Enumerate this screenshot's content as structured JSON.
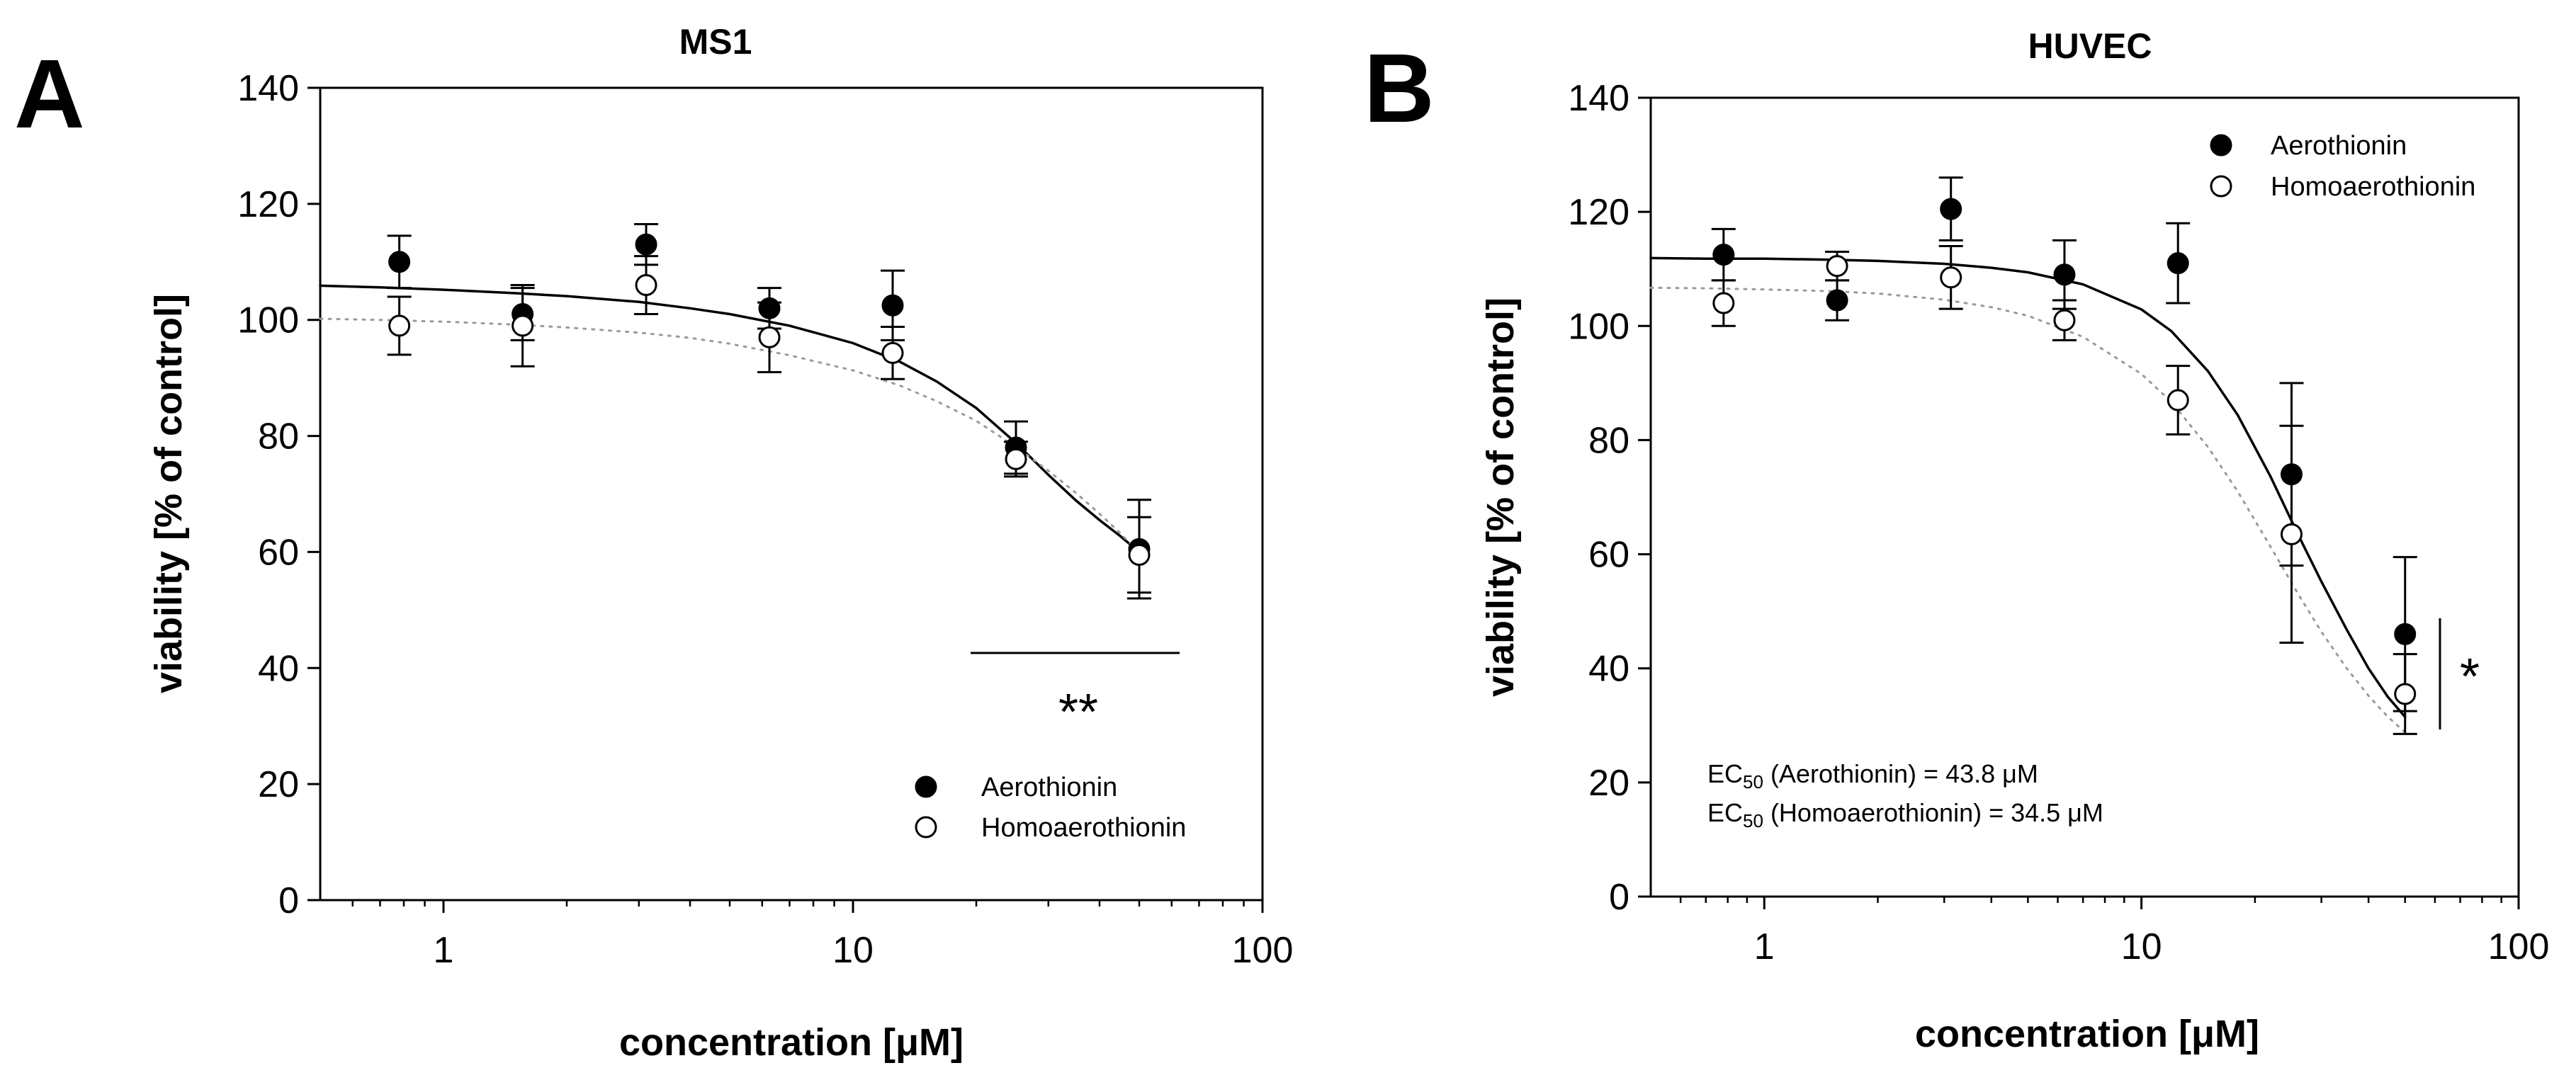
{
  "chart_data": [
    {
      "panel": "A",
      "type": "scatter",
      "title": "MS1",
      "xlabel": "concentration [μM]",
      "ylabel": "viability [% of control]",
      "xscale": "log",
      "xlim": [
        0.5,
        100
      ],
      "ylim": [
        0,
        140
      ],
      "xticks": [
        1,
        10,
        100
      ],
      "xtick_labels": [
        "1",
        "10",
        "100"
      ],
      "yticks": [
        0,
        20,
        40,
        60,
        80,
        100,
        120,
        140
      ],
      "ytick_labels": [
        "0",
        "20",
        "40",
        "60",
        "80",
        "100",
        "120",
        "140"
      ],
      "legend_position": "bottom-right",
      "series": [
        {
          "name": "Aerothionin",
          "marker": "filled-circle",
          "fit_line": "solid",
          "x": [
            0.78,
            1.56,
            3.125,
            6.25,
            12.5,
            25,
            50
          ],
          "y": [
            110,
            101,
            113,
            102,
            102.5,
            78,
            60.5
          ],
          "err": [
            4.5,
            4.5,
            3.5,
            3.5,
            6,
            4.5,
            8.5
          ],
          "fit_x": [
            0.5,
            0.7,
            1,
            1.5,
            2,
            3,
            4,
            5,
            7,
            10,
            13,
            16,
            20,
            25,
            30,
            35,
            40,
            45,
            50
          ],
          "fit_y": [
            105.9,
            105.6,
            105.2,
            104.6,
            104.1,
            103.1,
            102.0,
            101.0,
            99.0,
            96.0,
            92.8,
            89.4,
            84.8,
            78.8,
            73.3,
            68.9,
            65.5,
            62.7,
            60.0
          ]
        },
        {
          "name": "Homoaerothionin",
          "marker": "open-circle",
          "fit_line": "dotted",
          "x": [
            0.78,
            1.56,
            3.125,
            6.25,
            12.5,
            25,
            50
          ],
          "y": [
            99,
            99,
            106,
            97,
            94.3,
            76,
            59.5
          ],
          "err": [
            5,
            7,
            5,
            6,
            4.5,
            3,
            6.5
          ],
          "fit_x": [
            0.5,
            0.7,
            1,
            1.5,
            2,
            3,
            4,
            5,
            7,
            10,
            13,
            16,
            20,
            25,
            30,
            35,
            40,
            45,
            50
          ],
          "fit_y": [
            100.2,
            100.0,
            99.7,
            99.2,
            98.7,
            97.8,
            96.9,
            95.9,
            93.9,
            91.3,
            88.7,
            86.0,
            82.6,
            78.1,
            74.0,
            70.2,
            66.6,
            63.2,
            59.8
          ]
        }
      ],
      "annotations": [
        {
          "text": "**",
          "type": "significance",
          "near": "x 20–60 μM, y ≈ 43"
        }
      ]
    },
    {
      "panel": "B",
      "type": "scatter",
      "title": "HUVEC",
      "xlabel": "concentration [μM]",
      "ylabel": "viability [% of control]",
      "xscale": "log",
      "xlim": [
        0.5,
        100
      ],
      "ylim": [
        0,
        140
      ],
      "xticks": [
        1,
        10,
        100
      ],
      "xtick_labels": [
        "1",
        "10",
        "100"
      ],
      "yticks": [
        0,
        20,
        40,
        60,
        80,
        100,
        120,
        140
      ],
      "ytick_labels": [
        "0",
        "20",
        "40",
        "60",
        "80",
        "100",
        "120",
        "140"
      ],
      "legend_position": "top-right",
      "series": [
        {
          "name": "Aerothionin",
          "marker": "filled-circle",
          "fit_line": "solid",
          "x": [
            0.78,
            1.56,
            3.125,
            6.25,
            12.5,
            25,
            50
          ],
          "y": [
            112.5,
            104.5,
            120.5,
            109,
            111,
            74,
            46
          ],
          "err": [
            4.5,
            3.5,
            5.5,
            6,
            7,
            16,
            13.5
          ],
          "fit_x": [
            0.5,
            0.7,
            1,
            1.5,
            2,
            3,
            4,
            5,
            7,
            10,
            12,
            15,
            18,
            22,
            26,
            30,
            35,
            40,
            45,
            50
          ],
          "fit_y": [
            111.9,
            111.8,
            111.8,
            111.6,
            111.4,
            110.9,
            110.2,
            109.4,
            107.3,
            102.9,
            99.1,
            92.1,
            84.4,
            73.6,
            63.5,
            55.2,
            46.8,
            40.0,
            35.0,
            31.5
          ]
        },
        {
          "name": "Homoaerothionin",
          "marker": "open-circle",
          "fit_line": "dotted",
          "x": [
            0.78,
            1.56,
            3.125,
            6.25,
            12.5,
            25,
            50
          ],
          "y": [
            104,
            110.5,
            108.5,
            101,
            87,
            63.5,
            35.5
          ],
          "err": [
            4,
            2.5,
            5.5,
            3.5,
            6,
            19,
            7
          ],
          "fit_x": [
            0.5,
            0.7,
            1,
            1.5,
            2,
            3,
            4,
            5,
            7,
            10,
            12,
            15,
            18,
            22,
            26,
            30,
            35,
            40,
            45,
            50
          ],
          "fit_y": [
            106.7,
            106.6,
            106.4,
            106.1,
            105.7,
            104.6,
            103.3,
            101.8,
            98.1,
            91.6,
            86.7,
            78.8,
            71.0,
            61.3,
            53.1,
            46.4,
            40.0,
            35.2,
            31.5,
            28.8
          ]
        }
      ],
      "annotations": [
        {
          "text": "*",
          "type": "significance",
          "near": "x ≈ 60 μM, y 30–50"
        },
        {
          "prefix": "EC",
          "sub": "50",
          "rest": " (Aerothionin) = 43.8 μM"
        },
        {
          "prefix": "EC",
          "sub": "50",
          "rest": " (Homoaerothionin)  = 34.5 μM"
        }
      ]
    }
  ]
}
